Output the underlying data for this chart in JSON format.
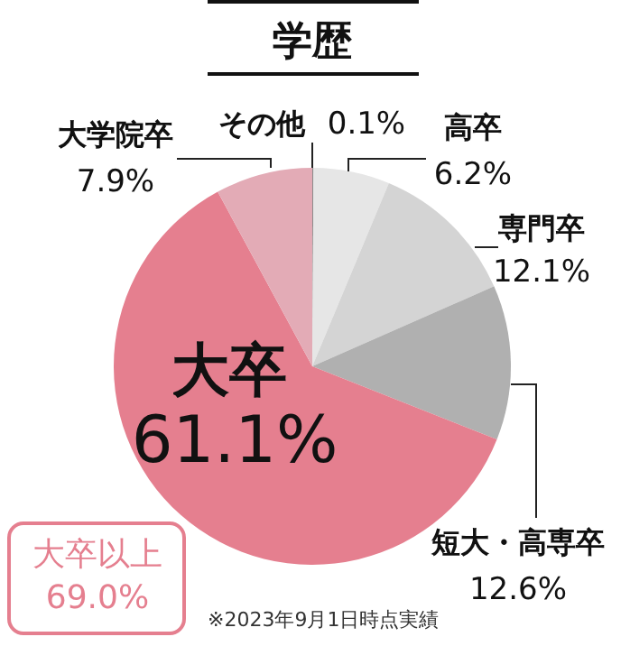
{
  "chart_data": {
    "type": "pie",
    "title": "学歴",
    "categories": [
      "その他",
      "高卒",
      "専門卒",
      "短大・高専卒",
      "大卒",
      "大学院卒"
    ],
    "values": [
      0.1,
      6.2,
      12.1,
      12.6,
      61.1,
      7.9
    ],
    "value_labels": [
      "0.1%",
      "6.2%",
      "12.1%",
      "12.6%",
      "61.1%",
      "7.9%"
    ],
    "colors": [
      "#8c8c8c",
      "#e6e6e6",
      "#d4d4d4",
      "#b0b0b0",
      "#e57f8f",
      "#e3abb6"
    ],
    "annotations": [
      "大卒以上 69.0%",
      "※2023年9月1日時点実績"
    ]
  }
}
